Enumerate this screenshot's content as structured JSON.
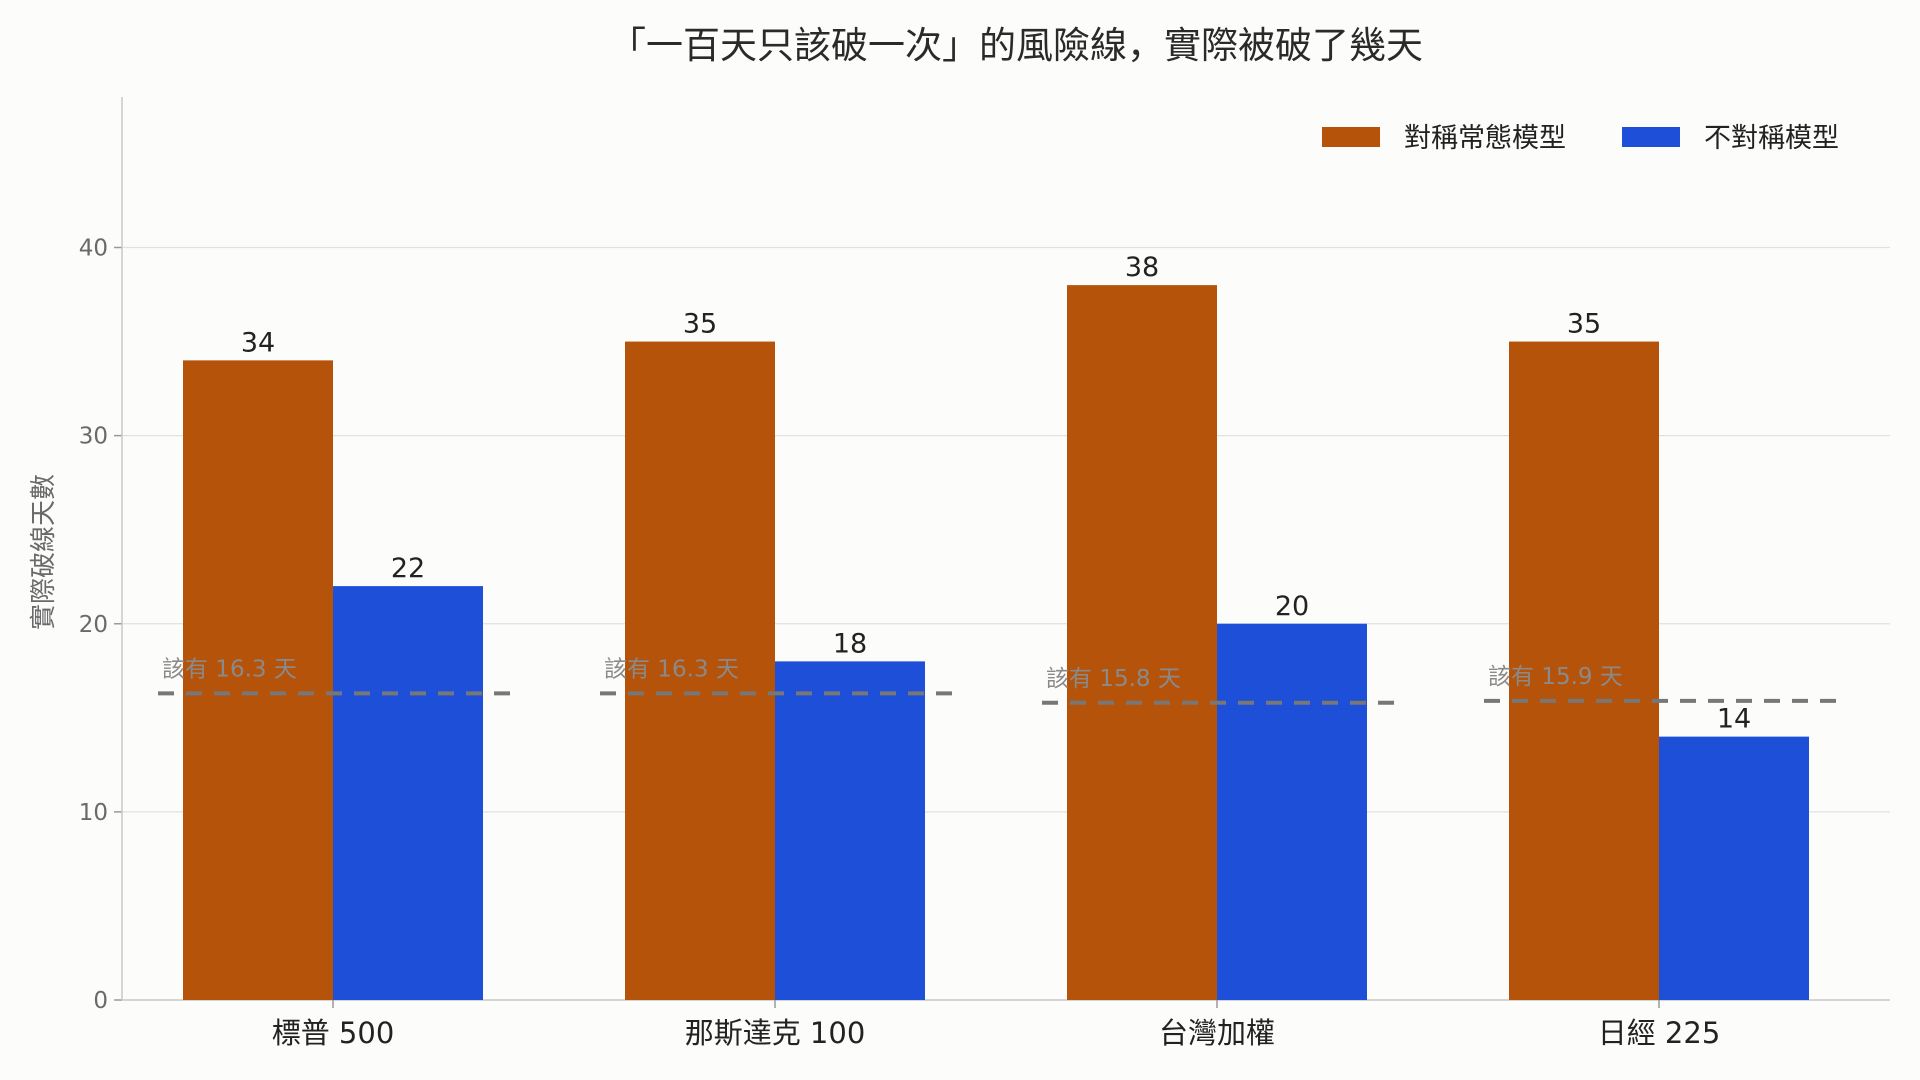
{
  "chart_data": {
    "type": "bar",
    "title": "「一百天只該破一次」的風險線，實際被破了幾天",
    "xlabel": "",
    "ylabel": "實際破線天數",
    "ylim": [
      0,
      48
    ],
    "yticks": [
      0,
      10,
      20,
      30,
      40
    ],
    "grid": true,
    "legend_position": "top-right",
    "categories": [
      "標普 500",
      "那斯達克 100",
      "台灣加權",
      "日經 225"
    ],
    "series": [
      {
        "name": "對稱常態模型",
        "color": "#b5530b",
        "values": [
          34,
          35,
          38,
          35
        ]
      },
      {
        "name": "不對稱模型",
        "color": "#1e4fd8",
        "values": [
          22,
          18,
          20,
          14
        ]
      }
    ],
    "expected": {
      "values": [
        16.3,
        16.3,
        15.8,
        15.9
      ],
      "labels": [
        "該有 16.3 天",
        "該有 16.3 天",
        "該有 15.8 天",
        "該有 15.9 天"
      ],
      "color": "#777777"
    }
  }
}
